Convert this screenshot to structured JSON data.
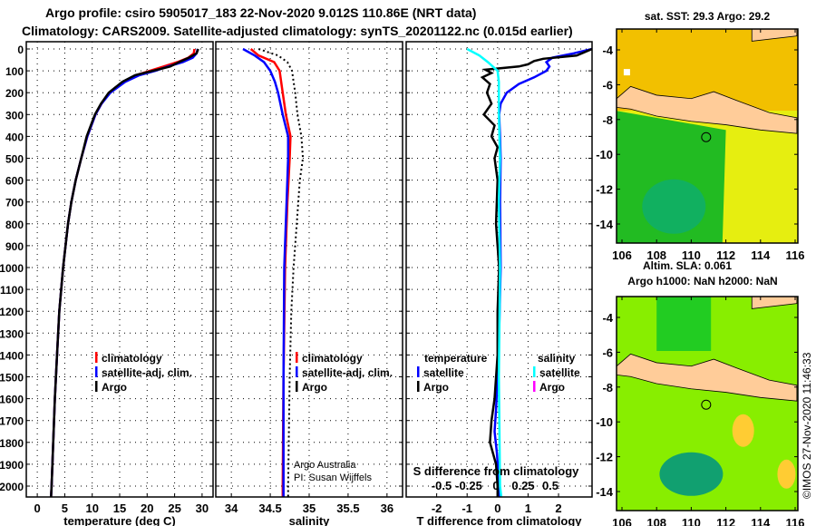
{
  "header": {
    "line1": "Argo profile: csiro 5905017_183 22-Nov-2020 9.012S 110.86E (NRT data)",
    "line2": "Climatology: CARS2009. Satellite-adjusted climatology: synTS_20201122.nc (0.015d earlier)"
  },
  "colors": {
    "climatology": "#ff0000",
    "satellite": "#0000ff",
    "argo": "#000000",
    "sal_satellite": "#00ffff",
    "sal_argo": "#ff00ff",
    "land": "#ffcc99"
  },
  "chart_data": [
    {
      "type": "line",
      "id": "temperature",
      "xlabel": "temperature (deg C)",
      "ylabel": "",
      "xlim": [
        -2,
        32
      ],
      "ylim": [
        2050,
        -33
      ],
      "xticks": [
        0,
        5,
        10,
        15,
        20,
        25,
        30
      ],
      "yticks": [
        0,
        100,
        200,
        300,
        400,
        500,
        600,
        700,
        800,
        900,
        1000,
        1100,
        1200,
        1300,
        1400,
        1500,
        1600,
        1700,
        1800,
        1900,
        2000
      ],
      "legend": [
        "climatology",
        "satellite-adj. clim.",
        "Argo"
      ],
      "legend_position": "bottom-right",
      "series": [
        {
          "name": "climatology",
          "color": "#ff0000",
          "depth": [
            0,
            20,
            40,
            60,
            80,
            100,
            120,
            150,
            200,
            250,
            300,
            400,
            500,
            600,
            700,
            800,
            1000,
            1200,
            1400,
            1600,
            1800,
            2000,
            2050
          ],
          "values": [
            28.6,
            28.5,
            27.5,
            25.5,
            23,
            20.5,
            18,
            15.8,
            13.2,
            11.7,
            10.6,
            9.1,
            8,
            7,
            6.2,
            5.6,
            4.7,
            4,
            3.6,
            3.2,
            2.9,
            2.6,
            2.5
          ]
        },
        {
          "name": "satellite-adj. clim.",
          "color": "#0000ff",
          "depth": [
            0,
            20,
            40,
            60,
            80,
            100,
            120,
            150,
            200,
            250,
            300,
            400,
            500,
            600,
            700,
            800,
            1000,
            1200,
            1400,
            1600,
            1800,
            2000,
            2050
          ],
          "values": [
            29.2,
            29,
            28.3,
            26.5,
            23.8,
            21.5,
            18.6,
            16,
            13.3,
            11.7,
            10.6,
            9.1,
            8,
            7,
            6.2,
            5.6,
            4.7,
            4,
            3.6,
            3.2,
            2.9,
            2.6,
            2.5
          ]
        },
        {
          "name": "Argo",
          "color": "#000000",
          "depth": [
            0,
            20,
            40,
            60,
            80,
            100,
            120,
            150,
            200,
            250,
            300,
            400,
            500,
            600,
            700,
            800,
            1000,
            1200,
            1400,
            1600,
            1800,
            2000,
            2050
          ],
          "values": [
            29.3,
            29,
            27.6,
            25.8,
            24.2,
            21,
            17.8,
            15.5,
            13,
            11.6,
            10.5,
            9,
            8,
            7,
            6.2,
            5.6,
            4.7,
            4,
            3.6,
            3.2,
            2.9,
            2.6,
            2.5
          ]
        }
      ]
    },
    {
      "type": "line",
      "id": "salinity",
      "xlabel": "salinity",
      "ylabel": "",
      "xlim": [
        33.8,
        36.2
      ],
      "ylim": [
        2050,
        -33
      ],
      "xticks": [
        34,
        34.5,
        35,
        35.5,
        36
      ],
      "legend": [
        "climatology",
        "satellite-adj. clim.",
        "Argo"
      ],
      "legend_position": "bottom-right",
      "annotation": [
        "Argo Australia",
        "PI: Susan Wijffels"
      ],
      "series": [
        {
          "name": "climatology",
          "color": "#ff0000",
          "depth": [
            0,
            30,
            60,
            100,
            150,
            200,
            300,
            400,
            500,
            700,
            1000,
            1500,
            2000,
            2050
          ],
          "values": [
            34.25,
            34.35,
            34.55,
            34.62,
            34.64,
            34.66,
            34.7,
            34.76,
            34.75,
            34.72,
            34.69,
            34.67,
            34.66,
            34.66
          ]
        },
        {
          "name": "satellite-adj. clim.",
          "color": "#0000ff",
          "depth": [
            0,
            30,
            60,
            100,
            150,
            200,
            300,
            400,
            500,
            700,
            1000,
            1500,
            2000,
            2050
          ],
          "values": [
            34.15,
            34.3,
            34.42,
            34.5,
            34.56,
            34.6,
            34.66,
            34.73,
            34.73,
            34.71,
            34.68,
            34.67,
            34.67,
            34.67
          ]
        },
        {
          "name": "Argo",
          "color": "#000000",
          "dotted": true,
          "depth": [
            0,
            30,
            60,
            100,
            150,
            200,
            300,
            400,
            500,
            600,
            800,
            1000,
            1200,
            1500,
            2000,
            2050
          ],
          "values": [
            34.35,
            34.6,
            34.72,
            34.78,
            34.8,
            34.82,
            34.85,
            34.9,
            34.92,
            34.88,
            34.84,
            34.8,
            34.77,
            34.75,
            34.73,
            34.73
          ]
        }
      ]
    },
    {
      "type": "line",
      "id": "difference",
      "xlabel": "T difference from climatology",
      "x2label": "S difference from climatology",
      "xlim": [
        -3,
        3.1
      ],
      "ylim": [
        2050,
        -33
      ],
      "xticks": [
        -2,
        -1,
        0,
        1,
        2
      ],
      "x2ticks": [
        "-0.5",
        "-0.25",
        "0",
        "0.25",
        "0.5"
      ],
      "legend_titles": [
        "temperature",
        "salinity"
      ],
      "legend": [
        [
          "satellite",
          "Argo"
        ],
        [
          "satellite",
          "Argo"
        ]
      ],
      "series": [
        {
          "name": "T satellite",
          "color": "#0000ff",
          "depth": [
            0,
            20,
            40,
            60,
            80,
            100,
            130,
            160,
            200,
            250,
            300,
            400,
            500,
            700,
            1000,
            1300,
            1500,
            1650,
            1750,
            1850,
            2000,
            2050
          ],
          "values": [
            3.1,
            2.5,
            1.8,
            1.6,
            1.7,
            1.6,
            1.2,
            0.7,
            0.3,
            0.1,
            0.05,
            0.08,
            0.1,
            0.08,
            0.1,
            0.05,
            0,
            -0.05,
            -0.1,
            -0.02,
            0.05,
            0.05
          ]
        },
        {
          "name": "T Argo",
          "color": "#000000",
          "depth": [
            0,
            30,
            45,
            55,
            70,
            80,
            95,
            110,
            130,
            160,
            200,
            250,
            300,
            350,
            400,
            450,
            500,
            600,
            800,
            1000,
            1200,
            1400,
            1600,
            1700,
            1800,
            1900,
            2000,
            2050
          ],
          "values": [
            3.1,
            2.6,
            1.5,
            1.2,
            1,
            0.7,
            -0.4,
            -0.2,
            -0.5,
            -0.25,
            -0.35,
            -0.2,
            -0.45,
            -0.1,
            -0.2,
            0,
            -0.1,
            0,
            -0.05,
            0.05,
            0,
            0,
            -0.1,
            -0.2,
            -0.25,
            -0.05,
            0,
            0
          ]
        },
        {
          "name": "S satellite",
          "color": "#00ffff",
          "s_units": true,
          "depth": [
            0,
            30,
            60,
            100,
            150,
            200,
            300,
            500,
            700,
            1000,
            1500,
            2000,
            2050
          ],
          "values": [
            -0.25,
            -0.15,
            -0.08,
            0,
            0.01,
            0.01,
            0.01,
            0.02,
            0.01,
            0.02,
            0.01,
            0.02,
            0.03
          ]
        }
      ]
    },
    {
      "type": "heatmap",
      "id": "sst_map",
      "title": "sat. SST: 29.3 Argo: 29.2",
      "xticks": [
        106,
        108,
        110,
        112,
        114,
        116
      ],
      "yticks": [
        -4,
        -6,
        -8,
        -10,
        -12,
        -14
      ],
      "xlim": [
        105.7,
        116.1
      ],
      "ylim": [
        -15,
        -2.9
      ],
      "marker": [
        110.86,
        -9.012
      ]
    },
    {
      "type": "heatmap",
      "id": "sla_map",
      "title": "Altim. SLA: 0.061",
      "subtitle": "Argo h1000: NaN h2000: NaN",
      "xticks": [
        106,
        108,
        110,
        112,
        114,
        116
      ],
      "yticks": [
        -4,
        -6,
        -8,
        -10,
        -12,
        -14
      ],
      "xlim": [
        105.7,
        116.1
      ],
      "ylim": [
        -15,
        -2.9
      ],
      "marker": [
        110.86,
        -9.012
      ]
    }
  ],
  "credit": "©IMOS 27-Nov-2020 11:46:33"
}
